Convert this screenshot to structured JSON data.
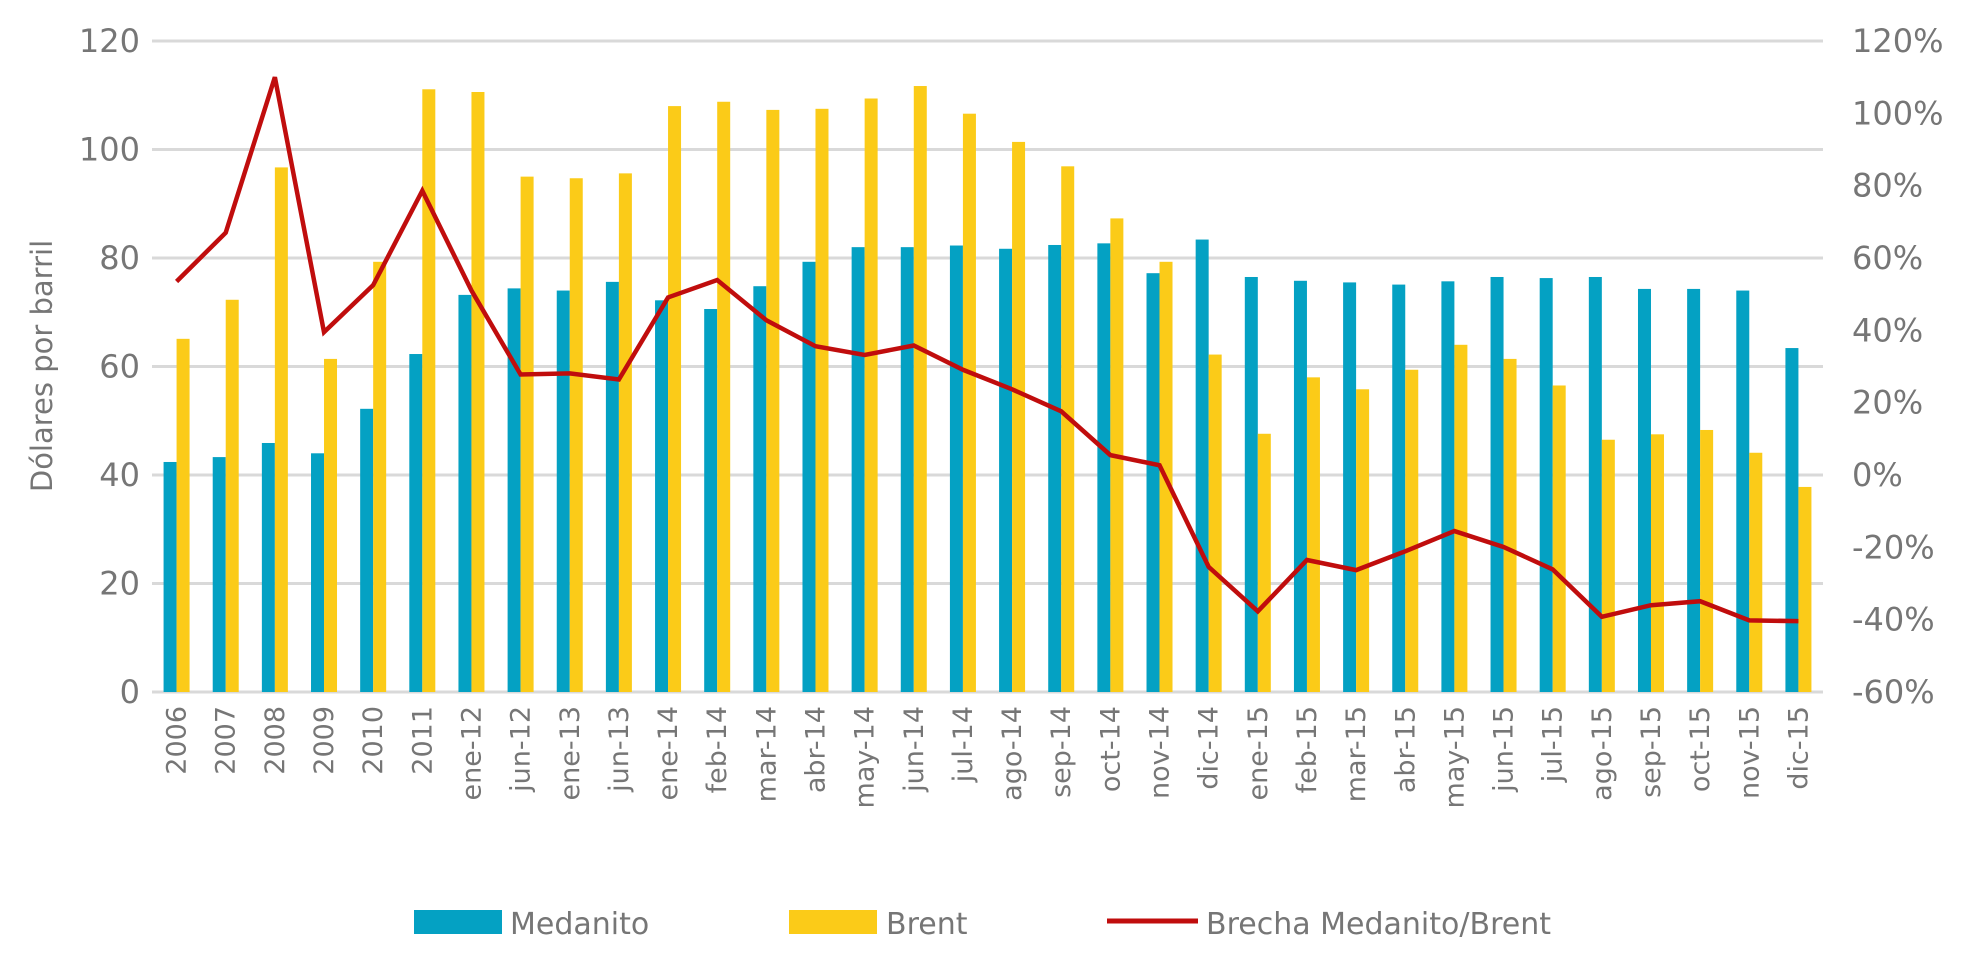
{
  "chart_data": {
    "type": "bar",
    "title": "",
    "xlabel": "",
    "ylabel": "Dólares por barril",
    "y2label": "",
    "ylim": [
      0,
      120
    ],
    "y2lim": [
      -0.6,
      1.2
    ],
    "yticks": [
      "0",
      "20",
      "40",
      "60",
      "80",
      "100",
      "120"
    ],
    "y2ticks": [
      "-60%",
      "-40%",
      "-20%",
      "0%",
      "20%",
      "40%",
      "60%",
      "80%",
      "100%",
      "120%"
    ],
    "grid": true,
    "legend_position": "bottom",
    "categories": [
      "2006",
      "2007",
      "2008",
      "2009",
      "2010",
      "2011",
      "ene-12",
      "jun-12",
      "ene-13",
      "jun-13",
      "ene-14",
      "feb-14",
      "mar-14",
      "abr-14",
      "may-14",
      "jun-14",
      "jul-14",
      "ago-14",
      "sep-14",
      "oct-14",
      "nov-14",
      "dic-14",
      "ene-15",
      "feb-15",
      "mar-15",
      "abr-15",
      "may-15",
      "jun-15",
      "jul-15",
      "ago-15",
      "sep-15",
      "oct-15",
      "nov-15",
      "dic-15"
    ],
    "series": [
      {
        "name": "Medanito",
        "type": "bar",
        "axis": "left",
        "color": "#04A1C3",
        "values": [
          42.4,
          43.3,
          45.9,
          44.0,
          52.2,
          62.3,
          73.2,
          74.4,
          74.0,
          75.6,
          72.2,
          70.6,
          74.8,
          79.3,
          82.0,
          82.0,
          82.3,
          81.7,
          82.4,
          82.7,
          77.2,
          83.4,
          76.5,
          75.8,
          75.5,
          75.1,
          75.7,
          76.5,
          76.3,
          76.5,
          74.3,
          74.3,
          74.0,
          63.4
        ]
      },
      {
        "name": "Brent",
        "type": "bar",
        "axis": "left",
        "color": "#FBCB18",
        "values": [
          65.1,
          72.3,
          96.7,
          61.4,
          79.3,
          111.1,
          110.6,
          95.0,
          94.7,
          95.6,
          108.0,
          108.8,
          107.3,
          107.5,
          109.4,
          111.7,
          106.6,
          101.4,
          96.9,
          87.3,
          79.3,
          62.2,
          47.6,
          58.0,
          55.8,
          59.4,
          64.0,
          61.4,
          56.5,
          46.5,
          47.5,
          48.3,
          44.1,
          37.8
        ]
      },
      {
        "name": "Brecha Medanito/Brent",
        "type": "line",
        "axis": "right",
        "color": "#C00D0D",
        "values": [
          0.535,
          0.67,
          1.1,
          0.395,
          0.525,
          0.786,
          0.51,
          0.278,
          0.281,
          0.264,
          0.491,
          0.539,
          0.428,
          0.356,
          0.332,
          0.358,
          0.291,
          0.237,
          0.176,
          0.055,
          0.027,
          -0.254,
          -0.377,
          -0.235,
          -0.263,
          -0.211,
          -0.155,
          -0.199,
          -0.261,
          -0.392,
          -0.36,
          -0.349,
          -0.402,
          -0.404
        ]
      }
    ]
  }
}
